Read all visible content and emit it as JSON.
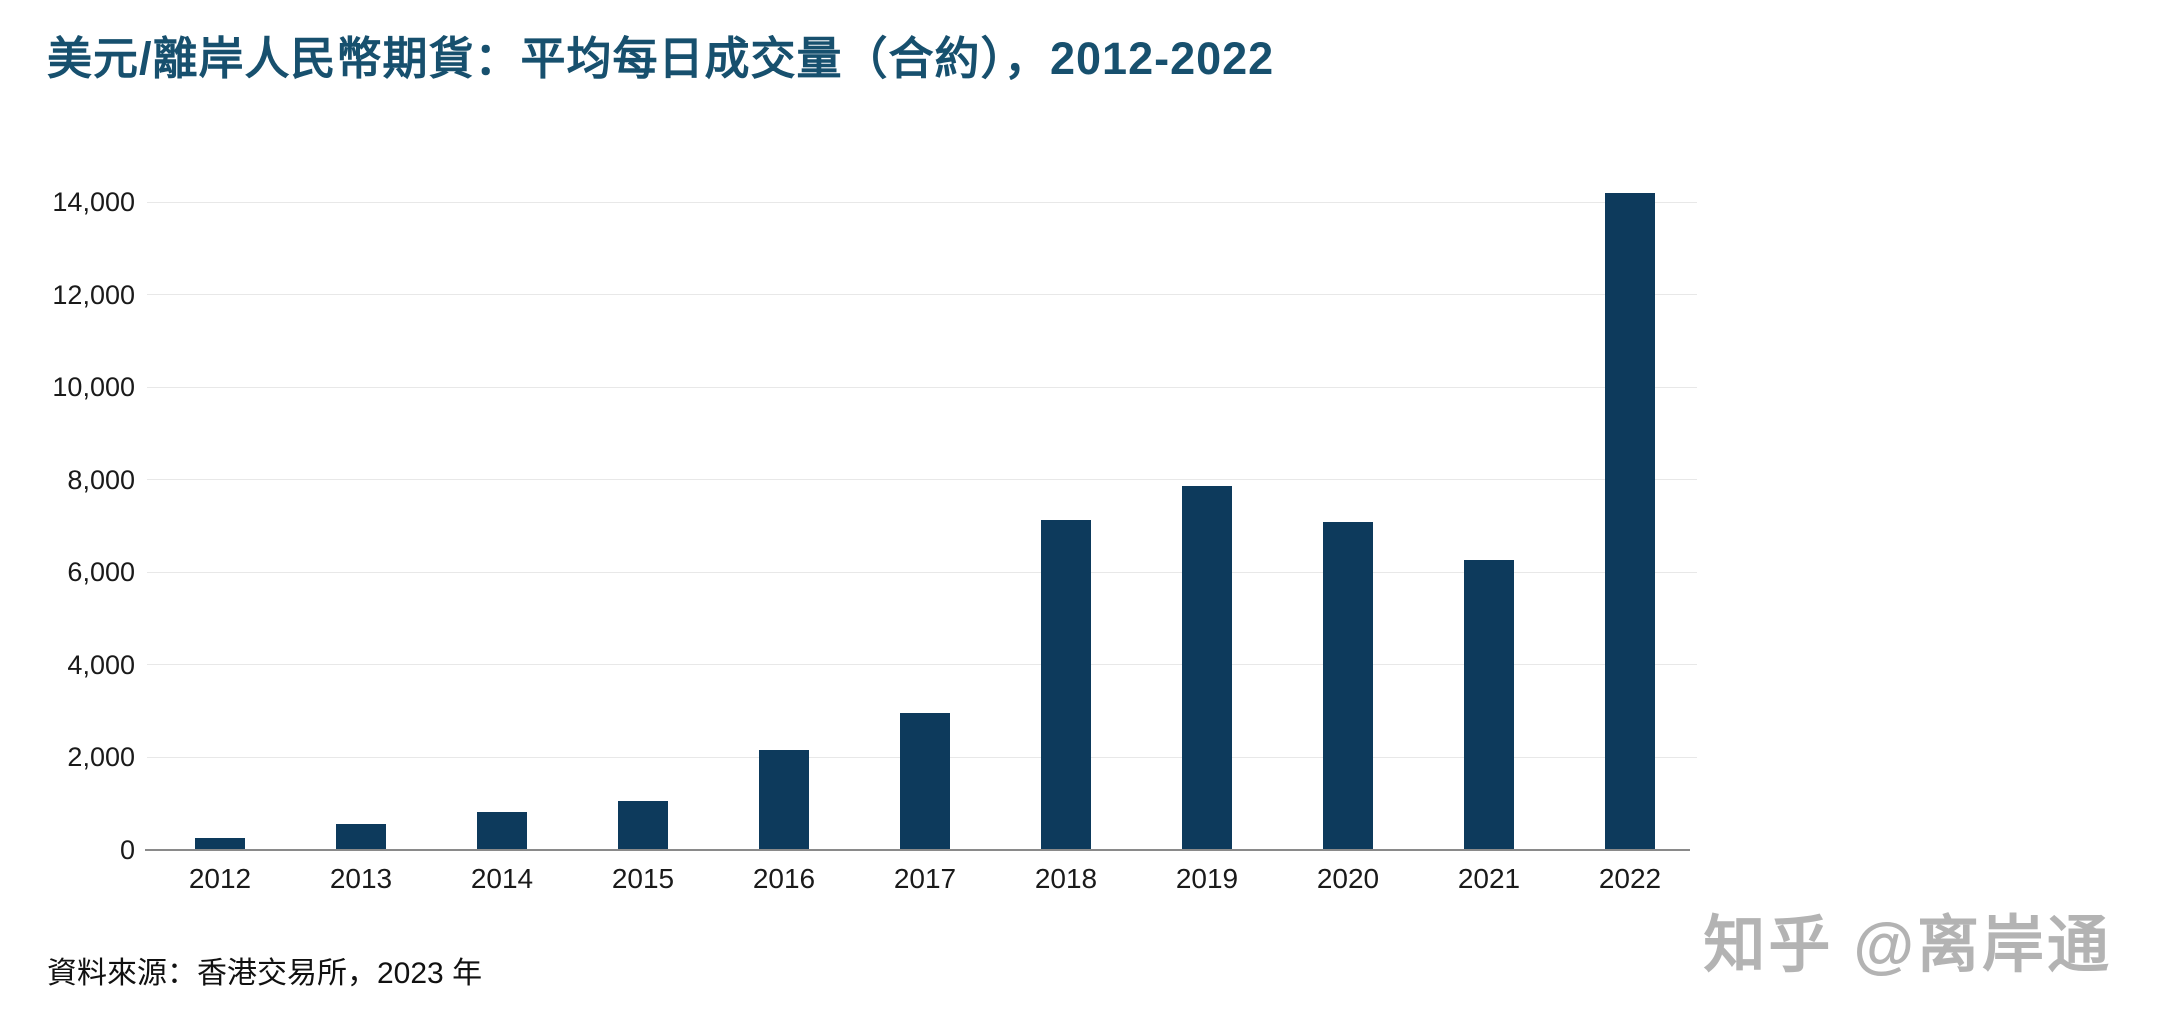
{
  "title": "美元/離岸人民幣期貨：平均每日成交量（合約），2012-2022",
  "source": "資料來源：香港交易所，2023 年",
  "watermark": "知乎 @离岸通",
  "colors": {
    "title": "#17506e",
    "bar": "#0d3a5c",
    "gridline": "#e8e8e8",
    "axis_line": "#8a8a8a",
    "tick_label": "#1a1a1a",
    "watermark": "#b3b3b3",
    "background": "#ffffff"
  },
  "chart_data": {
    "type": "bar",
    "title": "美元/離岸人民幣期貨：平均每日成交量（合約），2012-2022",
    "categories": [
      "2012",
      "2013",
      "2014",
      "2015",
      "2016",
      "2017",
      "2018",
      "2019",
      "2020",
      "2021",
      "2022"
    ],
    "values": [
      270,
      560,
      830,
      1060,
      2170,
      2960,
      7130,
      7860,
      7090,
      6270,
      14200
    ],
    "xlabel": "",
    "ylabel": "",
    "ylim": [
      0,
      14000
    ],
    "ytick_step": 2000,
    "ytick_labels": [
      "0",
      "2,000",
      "4,000",
      "6,000",
      "8,000",
      "10,000",
      "12,000",
      "14,000"
    ],
    "grid": "horizontal",
    "legend": "none"
  }
}
